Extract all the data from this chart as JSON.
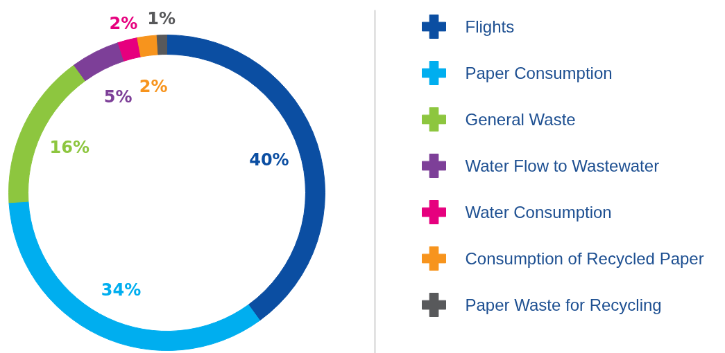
{
  "chart_data": {
    "type": "donut",
    "categories": [
      "Flights",
      "Paper Consumption",
      "General Waste",
      "Water Flow to Wastewater",
      "Water Consumption",
      "Consumption of Recycled Paper",
      "Paper Waste for Recycling"
    ],
    "values": [
      40,
      34,
      16,
      5,
      2,
      2,
      1
    ],
    "colors": [
      "#0b4ea2",
      "#00aeef",
      "#8dc63f",
      "#7d3f98",
      "#e6007e",
      "#f7941d",
      "#58595b"
    ],
    "value_labels": [
      "40%",
      "34%",
      "16%",
      "5%",
      "2%",
      "2%",
      "1%"
    ],
    "legend": "right"
  }
}
